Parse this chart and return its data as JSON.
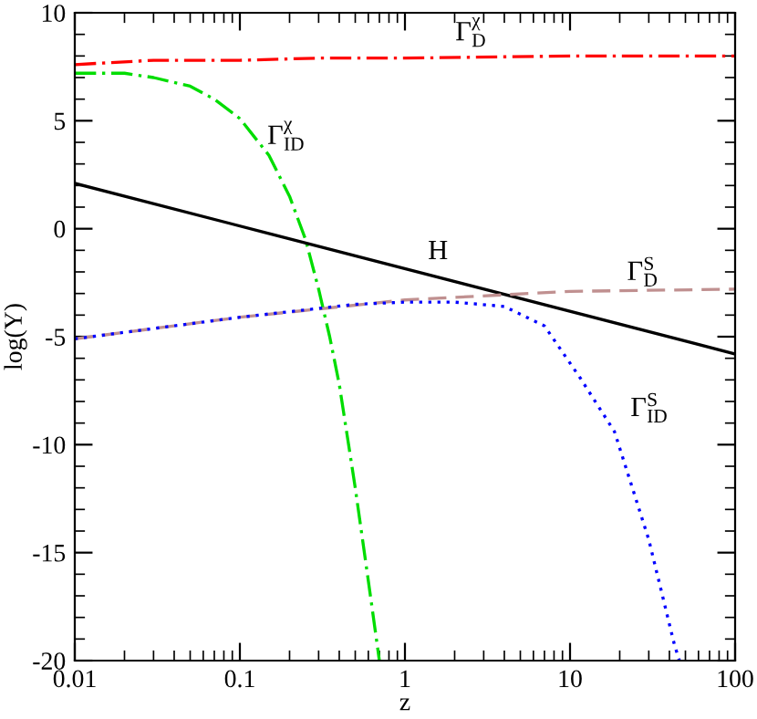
{
  "chart_data": {
    "type": "line",
    "xlabel": "z",
    "ylabel": "log(Y)",
    "log": "x",
    "xlim": [
      0.01,
      100
    ],
    "ylim": [
      -20,
      10
    ],
    "xticks": [
      0.01,
      0.1,
      1,
      10,
      100
    ],
    "yticks": [
      -20,
      -15,
      -10,
      -5,
      0,
      5,
      10
    ],
    "grid": false,
    "legend": false,
    "marker": "none",
    "series": [
      {
        "color": "#ff0000",
        "line_style": "dashdot",
        "x": [
          0.01,
          0.03,
          0.1,
          0.3,
          1,
          10,
          100
        ],
        "values": [
          7.6,
          7.8,
          7.8,
          7.9,
          7.9,
          8.0,
          8.0
        ]
      },
      {
        "color": "#00dd00",
        "line_style": "dashdot",
        "x": [
          0.01,
          0.02,
          0.03,
          0.05,
          0.07,
          0.1,
          0.15,
          0.2,
          0.25,
          0.3,
          0.35,
          0.4,
          0.5,
          0.6,
          0.7
        ],
        "values": [
          7.2,
          7.2,
          7.0,
          6.6,
          6.0,
          5.1,
          3.4,
          1.5,
          -0.5,
          -2.8,
          -5.0,
          -7.2,
          -12,
          -16.3,
          -20
        ]
      },
      {
        "color": "#000000",
        "line_style": "solid",
        "x": [
          0.01,
          100
        ],
        "values": [
          2.1,
          -5.8
        ]
      },
      {
        "color": "#c09090",
        "line_style": "dashed",
        "x": [
          0.01,
          0.1,
          1,
          10,
          100
        ],
        "values": [
          -5.1,
          -4.1,
          -3.3,
          -2.9,
          -2.8
        ]
      },
      {
        "color": "#0000ff",
        "line_style": "dotted",
        "x": [
          0.01,
          0.1,
          0.5,
          1,
          2,
          4,
          7,
          11.5,
          18.6,
          30,
          43,
          46
        ],
        "values": [
          -5.1,
          -4.1,
          -3.5,
          -3.4,
          -3.4,
          -3.6,
          -4.5,
          -6.9,
          -9.4,
          -14.4,
          -19.3,
          -20
        ]
      }
    ],
    "annotations": [
      "Γ$^{χ}$$_{D}$",
      "Γ$^{χ}$$_{ID}$",
      "H",
      "Γ$^{S}$$_{D}$",
      "Γ$^{S}$$_{ID}$"
    ]
  }
}
